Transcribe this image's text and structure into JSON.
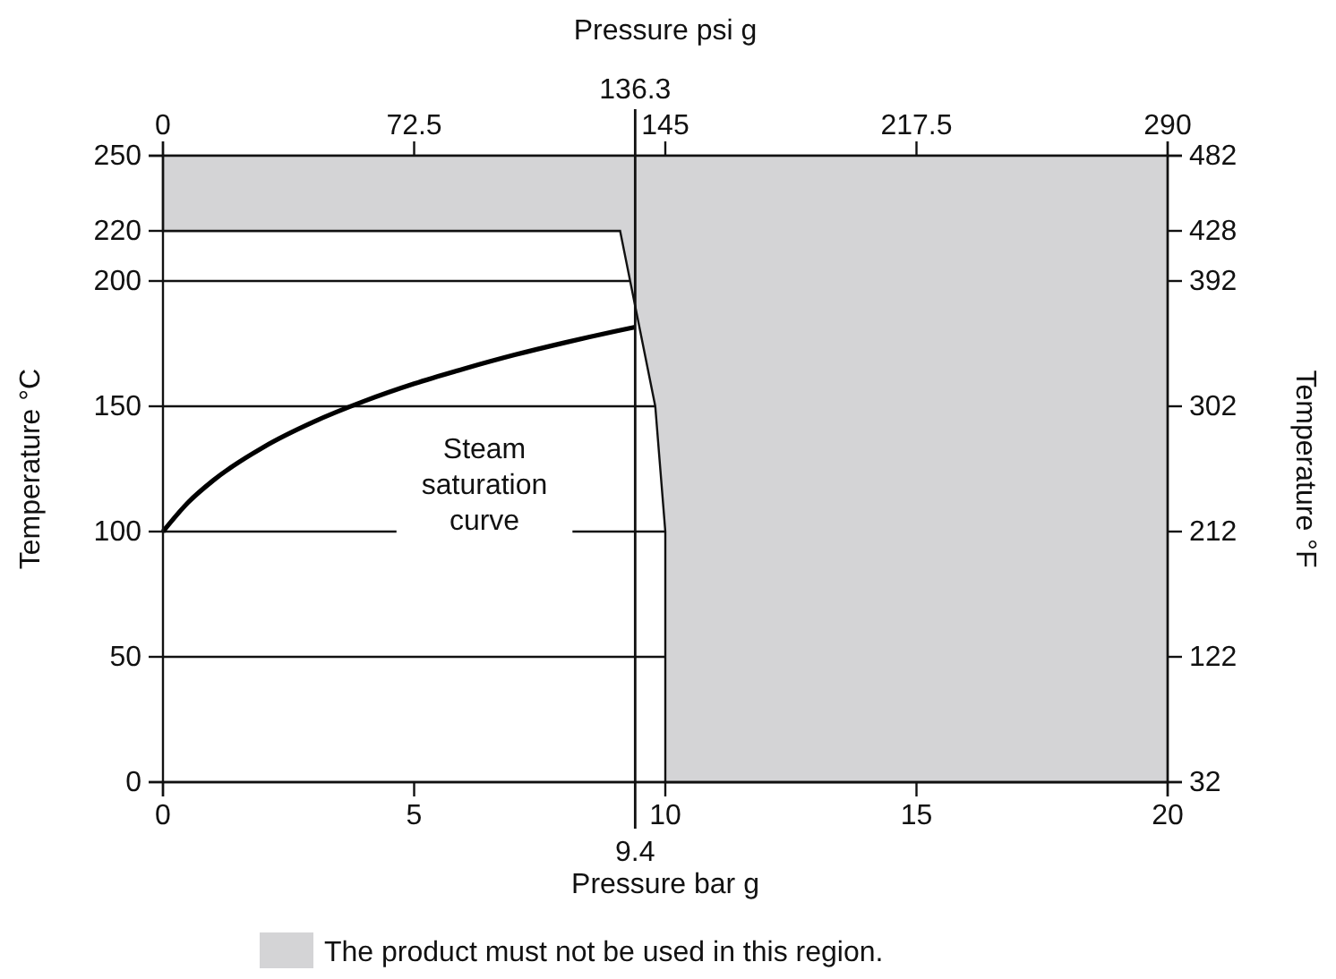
{
  "chart_data": {
    "type": "line",
    "xlabel": "Pressure bar g",
    "ylabel": "Temperature °C",
    "y2label": "Temperature °F",
    "x2label": "Pressure psi g",
    "xlim": [
      0,
      20
    ],
    "xticks": [
      0,
      5,
      10,
      15,
      20
    ],
    "ylim": [
      0,
      250
    ],
    "yticks": [
      0,
      50,
      100,
      150,
      200,
      220,
      250
    ],
    "y2lim": [
      32,
      482
    ],
    "y2ticks": [
      32,
      122,
      212,
      302,
      392,
      428,
      482
    ],
    "x2lim": [
      0,
      290
    ],
    "x2ticks": [
      0,
      72.5,
      145,
      217.5,
      290
    ],
    "grid": "y",
    "legend": "bottom",
    "ref_lines": [
      {
        "axis": "x",
        "value": 9.4,
        "label": "9.4"
      },
      {
        "axis": "x2",
        "value": 136.3,
        "label": "136.3"
      }
    ],
    "annotations": [
      "Steam saturation curve"
    ],
    "series": [
      {
        "type": "area",
        "name": "The product must not be used in this region.",
        "color": "#d4d4d6",
        "x": [
          0,
          0,
          9.1,
          9.3,
          9.8,
          10,
          10,
          20,
          20
        ],
        "values": [
          250,
          220,
          220,
          200,
          150,
          100,
          0,
          0,
          250
        ]
      },
      {
        "color": "#000000",
        "x": [
          0,
          0.5,
          1,
          2,
          3,
          4,
          5,
          6,
          7,
          8,
          9,
          9.4
        ],
        "values": [
          100,
          111.6,
          120.4,
          133.7,
          143.8,
          152,
          159,
          165,
          170.5,
          175.4,
          179.9,
          181.6
        ]
      }
    ]
  }
}
